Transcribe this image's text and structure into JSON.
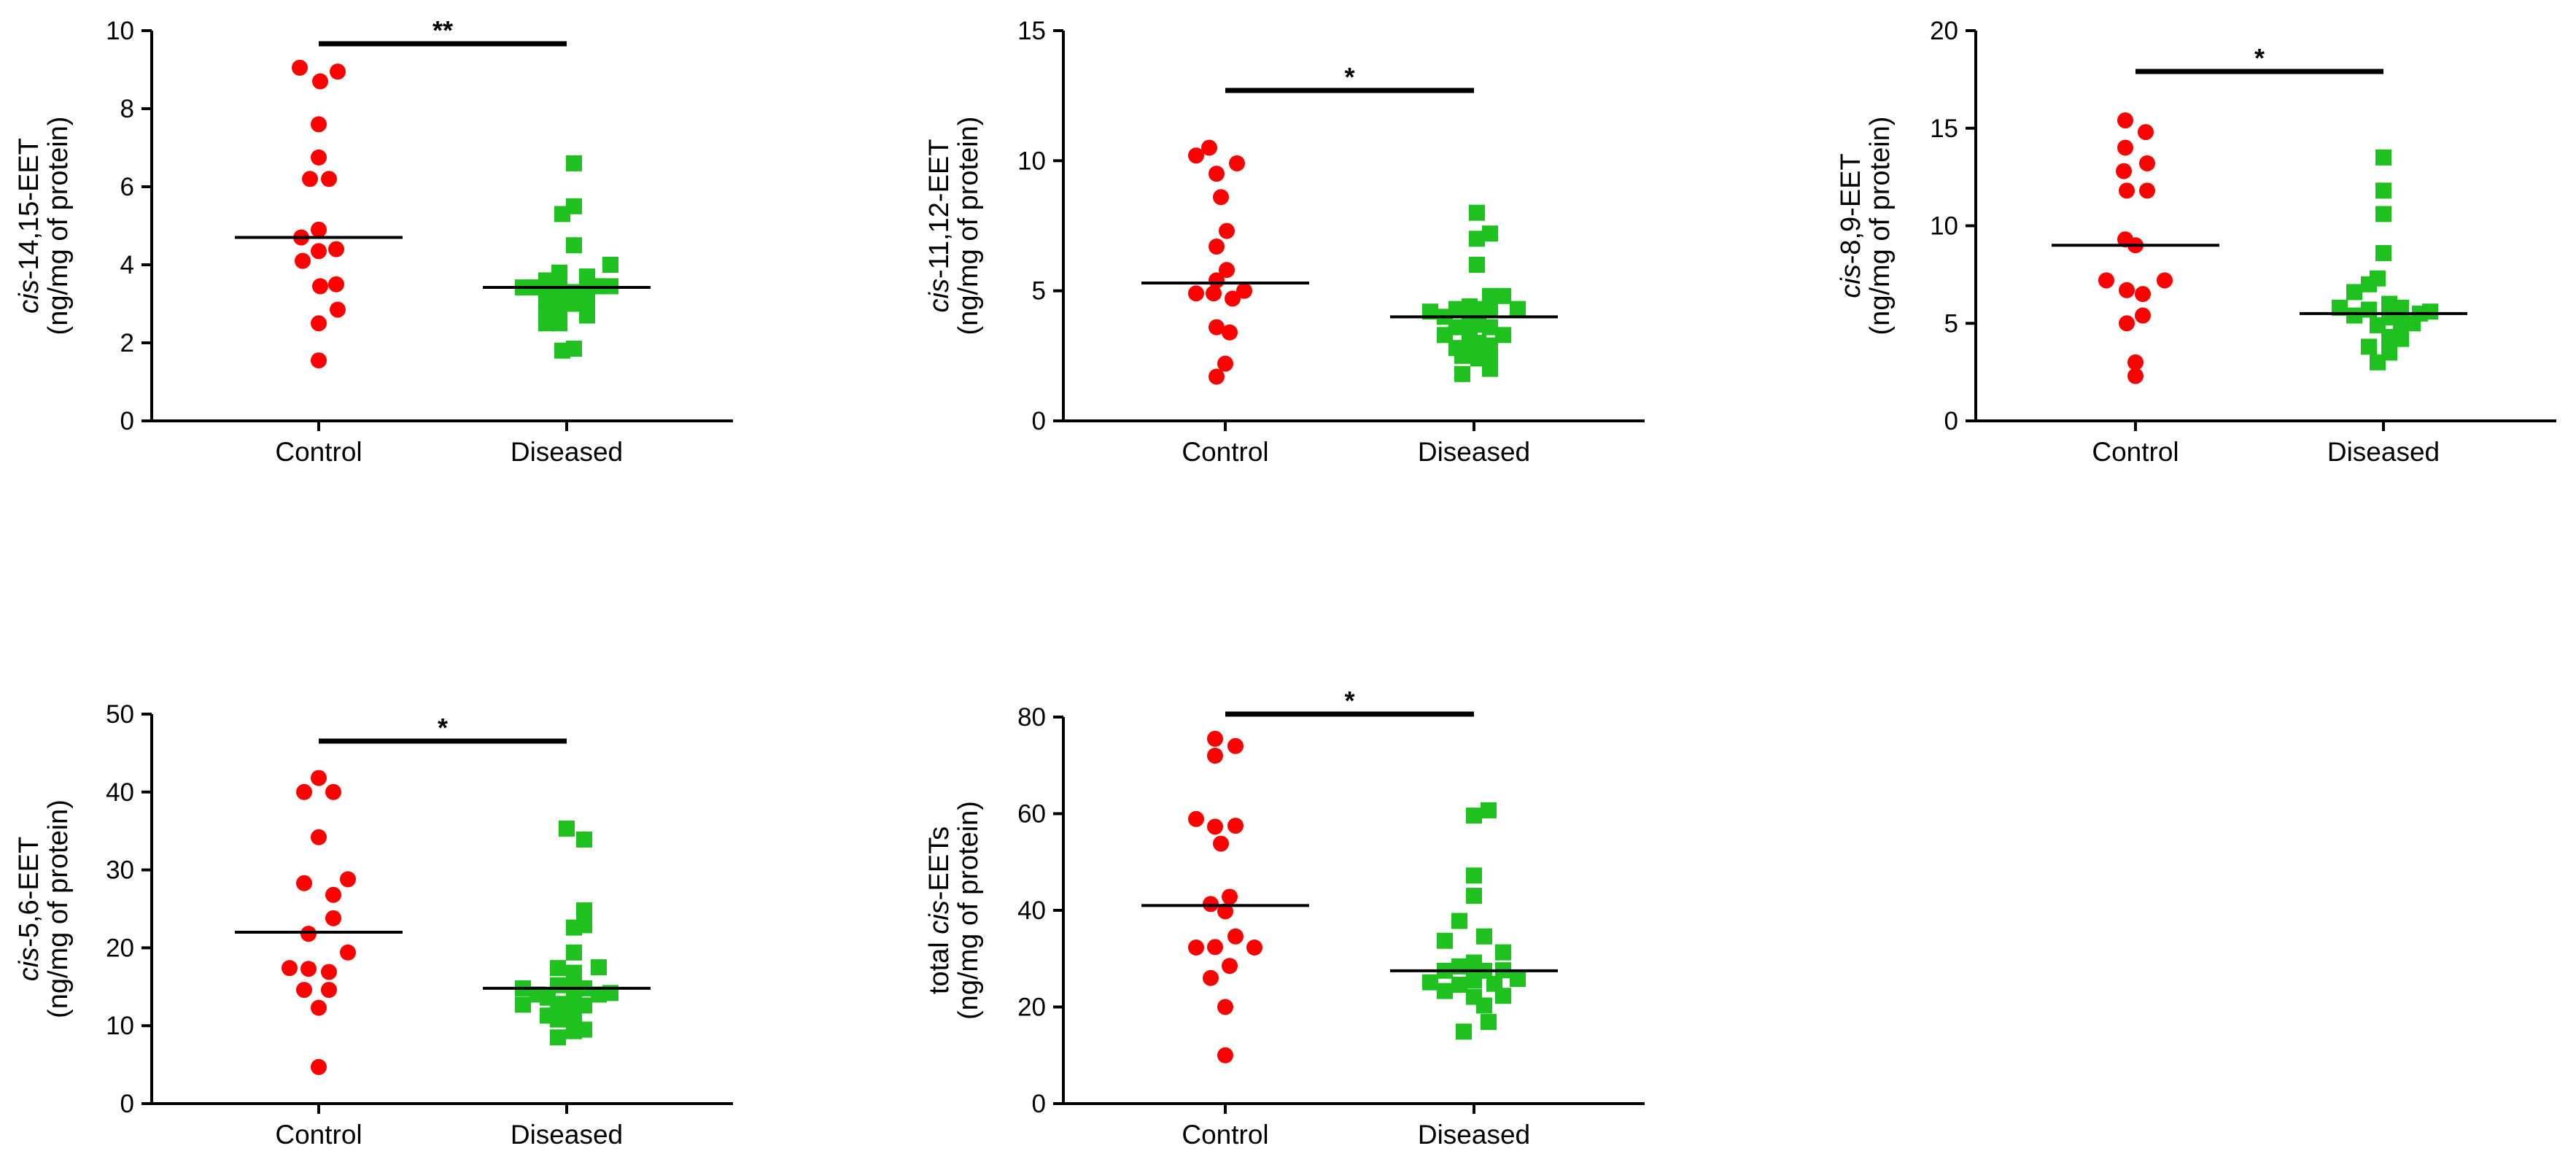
{
  "chart_data": [
    {
      "type": "scatter",
      "title": "",
      "ylabel_italic": "cis",
      "ylabel_rest": "-14,15-EET",
      "ylabel_line2": "(ng/mg of protein)",
      "categories": [
        "Control",
        "Diseased"
      ],
      "ylim": [
        0,
        10
      ],
      "yticks": [
        0,
        2,
        4,
        6,
        8,
        10
      ],
      "significance": "**",
      "series": [
        {
          "name": "Control",
          "marker": "circle",
          "color": "#ff0000",
          "median": 4.7,
          "points": [
            [
              -0.13,
              9.05
            ],
            [
              0.01,
              8.7
            ],
            [
              0.13,
              8.95
            ],
            [
              0.0,
              7.6
            ],
            [
              0.0,
              6.75
            ],
            [
              -0.06,
              6.2
            ],
            [
              0.07,
              6.2
            ],
            [
              -0.12,
              4.7
            ],
            [
              0.0,
              4.9
            ],
            [
              0.0,
              4.35
            ],
            [
              -0.11,
              4.1
            ],
            [
              0.12,
              4.4
            ],
            [
              0.01,
              3.45
            ],
            [
              0.12,
              3.5
            ],
            [
              0.13,
              2.85
            ],
            [
              0.0,
              2.5
            ],
            [
              0.0,
              1.55
            ]
          ]
        },
        {
          "name": "Diseased",
          "marker": "square",
          "color": "#1ec11e",
          "median": 3.42,
          "points": [
            [
              -0.3,
              3.42
            ],
            [
              -0.22,
              3.42
            ],
            [
              -0.14,
              3.6
            ],
            [
              -0.14,
              3.2
            ],
            [
              -0.14,
              2.8
            ],
            [
              -0.14,
              2.5
            ],
            [
              -0.05,
              3.8
            ],
            [
              -0.05,
              3.5
            ],
            [
              -0.05,
              3.1
            ],
            [
              -0.05,
              2.8
            ],
            [
              -0.05,
              2.5
            ],
            [
              -0.03,
              5.3
            ],
            [
              -0.03,
              1.8
            ],
            [
              0.05,
              6.6
            ],
            [
              0.05,
              5.5
            ],
            [
              0.05,
              4.5
            ],
            [
              0.05,
              3.3
            ],
            [
              0.05,
              3.0
            ],
            [
              0.05,
              1.85
            ],
            [
              0.14,
              3.7
            ],
            [
              0.14,
              3.4
            ],
            [
              0.14,
              3.0
            ],
            [
              0.14,
              2.7
            ],
            [
              0.22,
              3.45
            ],
            [
              0.3,
              4.0
            ],
            [
              0.3,
              3.45
            ]
          ]
        }
      ]
    },
    {
      "type": "scatter",
      "title": "",
      "ylabel_italic": "cis",
      "ylabel_rest": "-11,12-EET",
      "ylabel_line2": "(ng/mg of protein)",
      "categories": [
        "Control",
        "Diseased"
      ],
      "ylim": [
        0,
        15
      ],
      "yticks": [
        0,
        5,
        10,
        15
      ],
      "significance": "*",
      "series": [
        {
          "name": "Control",
          "marker": "circle",
          "color": "#ff0000",
          "median": 5.3,
          "points": [
            [
              -0.11,
              10.5
            ],
            [
              -0.2,
              10.2
            ],
            [
              0.08,
              9.9
            ],
            [
              -0.06,
              9.5
            ],
            [
              -0.03,
              8.6
            ],
            [
              0.01,
              7.3
            ],
            [
              -0.06,
              6.7
            ],
            [
              0.01,
              5.8
            ],
            [
              -0.06,
              5.4
            ],
            [
              -0.2,
              4.9
            ],
            [
              0.13,
              5.0
            ],
            [
              -0.08,
              4.9
            ],
            [
              0.05,
              4.7
            ],
            [
              -0.06,
              3.6
            ],
            [
              0.03,
              3.4
            ],
            [
              0.0,
              2.2
            ],
            [
              -0.06,
              1.7
            ]
          ]
        },
        {
          "name": "Diseased",
          "marker": "square",
          "color": "#1ec11e",
          "median": 4.0,
          "points": [
            [
              -0.3,
              4.2
            ],
            [
              -0.2,
              4.0
            ],
            [
              -0.2,
              3.3
            ],
            [
              -0.12,
              4.3
            ],
            [
              -0.12,
              3.6
            ],
            [
              -0.12,
              2.8
            ],
            [
              -0.08,
              2.5
            ],
            [
              -0.08,
              1.8
            ],
            [
              -0.03,
              4.4
            ],
            [
              -0.03,
              3.8
            ],
            [
              -0.03,
              3.2
            ],
            [
              -0.03,
              2.6
            ],
            [
              0.03,
              4.3
            ],
            [
              0.03,
              3.7
            ],
            [
              0.03,
              3.0
            ],
            [
              0.03,
              2.4
            ],
            [
              0.02,
              8.0
            ],
            [
              0.02,
              6.0
            ],
            [
              0.02,
              7.0
            ],
            [
              0.11,
              7.2
            ],
            [
              0.11,
              4.8
            ],
            [
              0.11,
              4.3
            ],
            [
              0.11,
              3.6
            ],
            [
              0.11,
              2.9
            ],
            [
              0.11,
              2.3
            ],
            [
              0.11,
              2.0
            ],
            [
              0.2,
              4.8
            ],
            [
              0.2,
              3.3
            ],
            [
              0.3,
              4.3
            ]
          ]
        }
      ]
    },
    {
      "type": "scatter",
      "title": "",
      "ylabel_italic": "cis",
      "ylabel_rest": "-8,9-EET",
      "ylabel_line2": "(ng/mg of protein)",
      "categories": [
        "Control",
        "Diseased"
      ],
      "ylim": [
        0,
        20
      ],
      "yticks": [
        0,
        5,
        10,
        15,
        20
      ],
      "significance": "*",
      "series": [
        {
          "name": "Control",
          "marker": "circle",
          "color": "#ff0000",
          "median": 9.0,
          "points": [
            [
              -0.07,
              15.4
            ],
            [
              0.07,
              14.8
            ],
            [
              -0.07,
              14.0
            ],
            [
              -0.08,
              12.8
            ],
            [
              -0.06,
              11.8
            ],
            [
              0.08,
              13.2
            ],
            [
              0.08,
              11.8
            ],
            [
              -0.07,
              9.3
            ],
            [
              0.0,
              9.0
            ],
            [
              -0.2,
              7.2
            ],
            [
              0.2,
              7.2
            ],
            [
              -0.06,
              6.7
            ],
            [
              0.05,
              6.5
            ],
            [
              -0.06,
              5.0
            ],
            [
              0.05,
              5.4
            ],
            [
              0.0,
              3.0
            ],
            [
              0.0,
              2.3
            ]
          ]
        },
        {
          "name": "Diseased",
          "marker": "square",
          "color": "#1ec11e",
          "median": 5.5,
          "points": [
            [
              -0.3,
              5.8
            ],
            [
              -0.2,
              6.6
            ],
            [
              -0.2,
              5.4
            ],
            [
              -0.1,
              7.0
            ],
            [
              -0.1,
              5.7
            ],
            [
              -0.1,
              3.8
            ],
            [
              -0.04,
              4.9
            ],
            [
              -0.04,
              3.0
            ],
            [
              -0.04,
              7.3
            ],
            [
              0.04,
              6.0
            ],
            [
              0.04,
              5.3
            ],
            [
              0.04,
              4.3
            ],
            [
              0.04,
              3.5
            ],
            [
              0.0,
              13.5
            ],
            [
              0.0,
              11.8
            ],
            [
              0.0,
              10.6
            ],
            [
              0.0,
              8.6
            ],
            [
              0.12,
              5.8
            ],
            [
              0.12,
              5.2
            ],
            [
              0.12,
              4.6
            ],
            [
              0.12,
              4.2
            ],
            [
              0.2,
              5.0
            ],
            [
              0.25,
              5.5
            ],
            [
              0.32,
              5.6
            ]
          ]
        }
      ]
    },
    {
      "type": "scatter",
      "title": "",
      "ylabel_italic": "cis",
      "ylabel_rest": "-5,6-EET",
      "ylabel_line2": "(ng/mg of protein)",
      "categories": [
        "Control",
        "Diseased"
      ],
      "ylim": [
        0,
        50
      ],
      "yticks": [
        0,
        10,
        20,
        30,
        40,
        50
      ],
      "significance": "*",
      "series": [
        {
          "name": "Control",
          "marker": "circle",
          "color": "#ff0000",
          "median": 22,
          "points": [
            [
              0.0,
              41.8
            ],
            [
              -0.1,
              40.0
            ],
            [
              0.1,
              40.0
            ],
            [
              0.0,
              34.2
            ],
            [
              -0.1,
              28.3
            ],
            [
              0.2,
              28.8
            ],
            [
              0.1,
              26.8
            ],
            [
              0.1,
              23.8
            ],
            [
              -0.07,
              21.8
            ],
            [
              0.2,
              19.4
            ],
            [
              -0.2,
              17.4
            ],
            [
              -0.07,
              17.3
            ],
            [
              0.07,
              16.9
            ],
            [
              -0.1,
              14.6
            ],
            [
              0.07,
              14.6
            ],
            [
              0.0,
              12.3
            ],
            [
              0.0,
              4.7
            ]
          ]
        },
        {
          "name": "Diseased",
          "marker": "square",
          "color": "#1ec11e",
          "median": 14.8,
          "points": [
            [
              -0.3,
              14.8
            ],
            [
              -0.3,
              12.7
            ],
            [
              -0.2,
              14.0
            ],
            [
              -0.13,
              13.6
            ],
            [
              -0.13,
              11.3
            ],
            [
              -0.06,
              17.4
            ],
            [
              -0.06,
              15.2
            ],
            [
              -0.06,
              12.8
            ],
            [
              -0.06,
              10.8
            ],
            [
              -0.06,
              8.5
            ],
            [
              0.0,
              35.3
            ],
            [
              0.05,
              22.6
            ],
            [
              0.05,
              19.4
            ],
            [
              0.05,
              16.8
            ],
            [
              0.05,
              14.8
            ],
            [
              0.05,
              12.9
            ],
            [
              0.05,
              10.9
            ],
            [
              0.05,
              9.3
            ],
            [
              0.12,
              33.9
            ],
            [
              0.12,
              24.8
            ],
            [
              0.12,
              22.9
            ],
            [
              0.12,
              14.8
            ],
            [
              0.12,
              12.6
            ],
            [
              0.12,
              9.5
            ],
            [
              0.22,
              17.5
            ],
            [
              0.22,
              14.0
            ],
            [
              0.3,
              14.2
            ]
          ]
        }
      ]
    },
    {
      "type": "scatter",
      "title": "",
      "ylabel_prefix": "total ",
      "ylabel_italic": "cis",
      "ylabel_rest": "-EETs",
      "ylabel_line2": "(ng/mg of protein)",
      "categories": [
        "Control",
        "Diseased"
      ],
      "ylim": [
        0,
        80
      ],
      "yticks": [
        0,
        20,
        40,
        60,
        80
      ],
      "significance": "*",
      "series": [
        {
          "name": "Control",
          "marker": "circle",
          "color": "#ff0000",
          "median": 41,
          "points": [
            [
              -0.07,
              75.5
            ],
            [
              0.07,
              74.0
            ],
            [
              -0.07,
              72.0
            ],
            [
              -0.2,
              58.9
            ],
            [
              -0.07,
              57.3
            ],
            [
              0.07,
              57.5
            ],
            [
              -0.03,
              53.8
            ],
            [
              0.03,
              42.8
            ],
            [
              -0.1,
              41.3
            ],
            [
              0.0,
              39.8
            ],
            [
              -0.2,
              32.3
            ],
            [
              0.2,
              32.3
            ],
            [
              -0.07,
              32.4
            ],
            [
              0.07,
              34.6
            ],
            [
              -0.1,
              26.0
            ],
            [
              0.03,
              28.5
            ],
            [
              0.0,
              20.0
            ],
            [
              0.0,
              10.0
            ]
          ]
        },
        {
          "name": "Diseased",
          "marker": "square",
          "color": "#1ec11e",
          "median": 27.5,
          "points": [
            [
              -0.3,
              25.1
            ],
            [
              -0.2,
              33.7
            ],
            [
              -0.2,
              27.5
            ],
            [
              -0.2,
              23.3
            ],
            [
              -0.1,
              37.8
            ],
            [
              -0.1,
              28.4
            ],
            [
              -0.1,
              24.6
            ],
            [
              -0.07,
              14.9
            ],
            [
              0.0,
              59.6
            ],
            [
              0.1,
              60.7
            ],
            [
              0.0,
              47.2
            ],
            [
              0.0,
              43.0
            ],
            [
              0.0,
              29.2
            ],
            [
              0.0,
              25.5
            ],
            [
              0.0,
              22.1
            ],
            [
              0.07,
              34.6
            ],
            [
              0.07,
              27.5
            ],
            [
              0.07,
              20.3
            ],
            [
              0.1,
              16.9
            ],
            [
              0.14,
              24.8
            ],
            [
              0.2,
              31.3
            ],
            [
              0.2,
              27.6
            ],
            [
              0.2,
              22.3
            ],
            [
              0.3,
              25.8
            ]
          ]
        }
      ]
    }
  ]
}
